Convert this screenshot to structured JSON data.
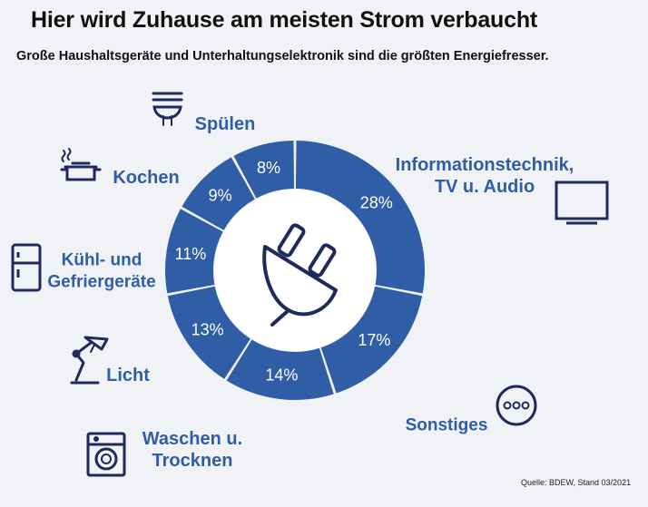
{
  "header": {
    "title": "Hier wird Zuhause am meisten Strom verbaucht",
    "subtitle": "Große Haushaltsgeräte und Unterhaltungselektronik sind die größten Energiefresser."
  },
  "source": "Quelle: BDEW, Stand 03/2021",
  "colors": {
    "segment": "#2f5ea6",
    "label": "#2f5ea6",
    "icon": "#1f2a5c",
    "background": "#f1f2f6"
  },
  "chart_data": {
    "type": "pie",
    "style": "donut",
    "center_icon": "power-plug-icon",
    "slices": [
      {
        "label_lines": [
          "Informationstechnik,",
          "TV u. Audio"
        ],
        "value": 28,
        "value_label": "28%",
        "icon": "tv-icon"
      },
      {
        "label_lines": [
          "Sonstiges"
        ],
        "value": 17,
        "value_label": "17%",
        "icon": "more-dots-icon"
      },
      {
        "label_lines": [
          "Waschen u.",
          "Trocknen"
        ],
        "value": 14,
        "value_label": "14%",
        "icon": "washing-machine-icon"
      },
      {
        "label_lines": [
          "Licht"
        ],
        "value": 13,
        "value_label": "13%",
        "icon": "desk-lamp-icon"
      },
      {
        "label_lines": [
          "Kühl- und",
          "Gefriergeräte"
        ],
        "value": 11,
        "value_label": "11%",
        "icon": "fridge-icon"
      },
      {
        "label_lines": [
          "Kochen"
        ],
        "value": 9,
        "value_label": "9%",
        "icon": "cooking-pot-icon"
      },
      {
        "label_lines": [
          "Spülen"
        ],
        "value": 8,
        "value_label": "8%",
        "icon": "dishes-icon"
      }
    ]
  }
}
